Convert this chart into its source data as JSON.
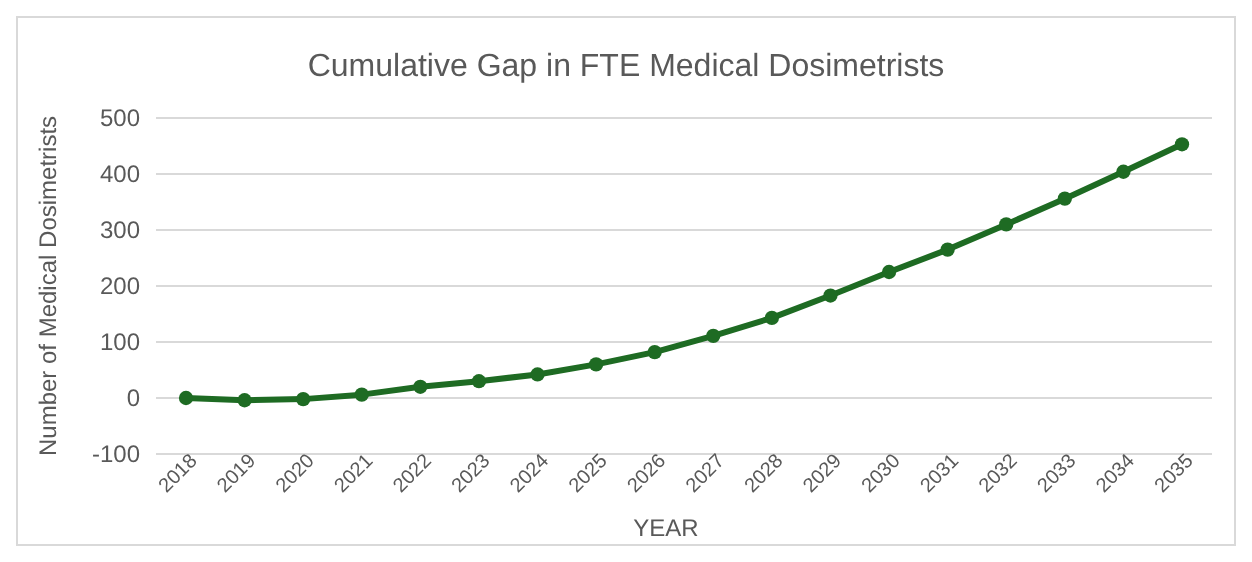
{
  "chart_data": {
    "type": "line",
    "title": "Cumulative Gap in FTE Medical Dosimetrists",
    "xlabel": "YEAR",
    "ylabel": "Number of Medical Dosimetrists",
    "categories": [
      "2018",
      "2019",
      "2020",
      "2021",
      "2022",
      "2023",
      "2024",
      "2025",
      "2026",
      "2027",
      "2028",
      "2029",
      "2030",
      "2031",
      "2032",
      "2033",
      "2034",
      "2035"
    ],
    "series": [
      {
        "color": "#1e6b23",
        "values": [
          0,
          -4,
          -2,
          6,
          20,
          30,
          42,
          60,
          82,
          111,
          143,
          183,
          225,
          265,
          310,
          356,
          404,
          453
        ]
      }
    ],
    "ylim": [
      -100,
      500
    ],
    "yticks": [
      -100,
      0,
      100,
      200,
      300,
      400,
      500
    ],
    "grid": "y",
    "marker": "circle"
  }
}
